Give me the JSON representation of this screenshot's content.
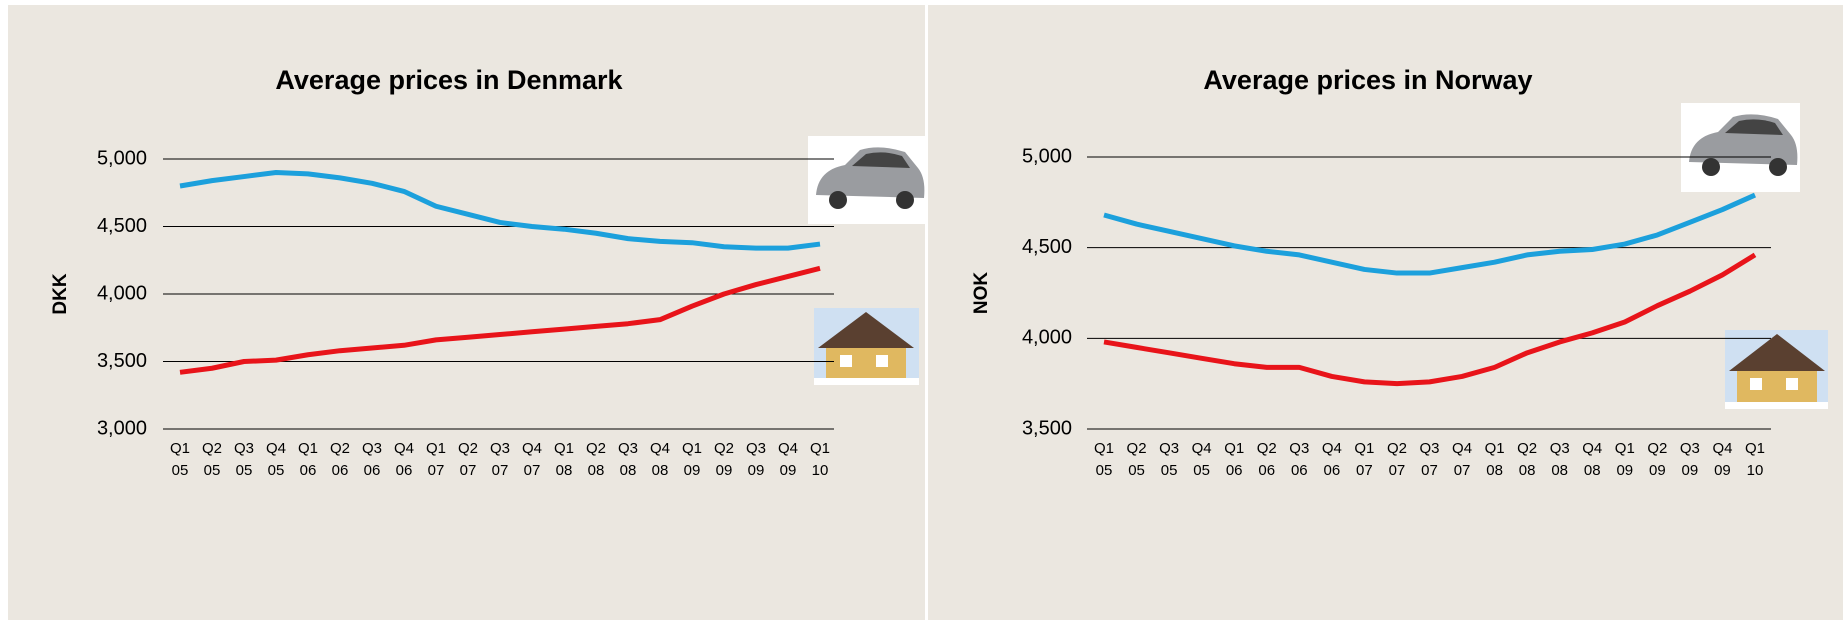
{
  "chart_data": [
    {
      "type": "line",
      "title": "Average prices in Denmark",
      "y_label": "DKK",
      "categories": [
        "Q1 05",
        "Q2 05",
        "Q3 05",
        "Q4 05",
        "Q1 06",
        "Q2 06",
        "Q3 06",
        "Q4 06",
        "Q1 07",
        "Q2 07",
        "Q3 07",
        "Q4 07",
        "Q1 08",
        "Q2 08",
        "Q3 08",
        "Q4 08",
        "Q1 09",
        "Q2 09",
        "Q3 09",
        "Q4 09",
        "Q1 10"
      ],
      "series": [
        {
          "color": "#1ca0dc",
          "values": [
            4800,
            4840,
            4870,
            4900,
            4890,
            4860,
            4820,
            4760,
            4650,
            4590,
            4530,
            4500,
            4480,
            4450,
            4410,
            4390,
            4380,
            4350,
            4340,
            4340,
            4370
          ]
        },
        {
          "color": "#e8141a",
          "values": [
            3420,
            3450,
            3500,
            3510,
            3550,
            3580,
            3600,
            3620,
            3660,
            3680,
            3700,
            3720,
            3740,
            3760,
            3780,
            3810,
            3910,
            4000,
            4070,
            4130,
            4190
          ]
        }
      ],
      "ylim": [
        3000,
        5000
      ],
      "yticks": [
        {
          "value": 3000,
          "label": "3,000"
        },
        {
          "value": 3500,
          "label": "3,500"
        },
        {
          "value": 4000,
          "label": "4,000"
        },
        {
          "value": 4500,
          "label": "4,500"
        },
        {
          "value": 5000,
          "label": "5,000"
        }
      ],
      "grid": true
    },
    {
      "type": "line",
      "title": "Average prices in Norway",
      "y_label": "NOK",
      "categories": [
        "Q1 05",
        "Q2 05",
        "Q3 05",
        "Q4 05",
        "Q1 06",
        "Q2 06",
        "Q3 06",
        "Q4 06",
        "Q1 07",
        "Q2 07",
        "Q3 07",
        "Q4 07",
        "Q1 08",
        "Q2 08",
        "Q3 08",
        "Q4 08",
        "Q1 09",
        "Q2 09",
        "Q3 09",
        "Q4 09",
        "Q1 10"
      ],
      "series": [
        {
          "color": "#1ca0dc",
          "values": [
            4680,
            4630,
            4590,
            4550,
            4510,
            4480,
            4460,
            4420,
            4380,
            4360,
            4360,
            4390,
            4420,
            4460,
            4480,
            4490,
            4520,
            4570,
            4640,
            4710,
            4790
          ]
        },
        {
          "color": "#e8141a",
          "values": [
            3980,
            3950,
            3920,
            3890,
            3860,
            3840,
            3840,
            3790,
            3760,
            3750,
            3760,
            3790,
            3840,
            3920,
            3980,
            4030,
            4090,
            4180,
            4260,
            4350,
            4460
          ]
        }
      ],
      "ylim": [
        3500,
        5000
      ],
      "yticks": [
        {
          "value": 3500,
          "label": "3,500"
        },
        {
          "value": 4000,
          "label": "4,000"
        },
        {
          "value": 4500,
          "label": "4,500"
        },
        {
          "value": 5000,
          "label": "5,000"
        }
      ],
      "grid": true
    }
  ]
}
